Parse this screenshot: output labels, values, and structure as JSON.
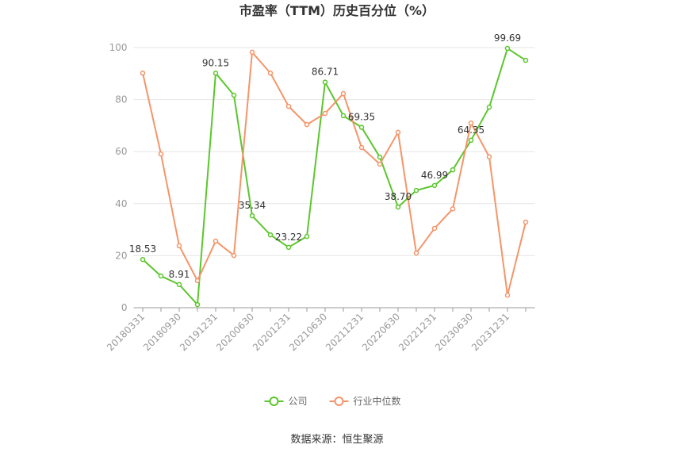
{
  "chart_data": {
    "type": "line",
    "title": "市盈率（TTM）历史百分位（%）",
    "source": "数据来源：恒生聚源",
    "categories": [
      "20180331",
      null,
      "20180930",
      null,
      "20191231",
      null,
      "20200630",
      null,
      "20201231",
      null,
      "20210630",
      null,
      "20211231",
      null,
      "20220630",
      null,
      "20221231",
      null,
      "20230630",
      null,
      "20231231",
      null
    ],
    "series": [
      {
        "name": "公司",
        "color": "#5cc62d",
        "values": [
          18.53,
          12.2,
          8.91,
          1.2,
          90.15,
          81.7,
          35.34,
          28.0,
          23.22,
          27.4,
          86.71,
          73.8,
          69.35,
          57.9,
          38.7,
          45.1,
          46.99,
          53.0,
          64.35,
          77.1,
          99.69,
          95.1
        ],
        "value_labels": [
          "18.53",
          null,
          "8.91",
          null,
          "90.15",
          null,
          "35.34",
          null,
          "23.22",
          null,
          "86.71",
          null,
          "69.35",
          null,
          "38.70",
          null,
          "46.99",
          null,
          "64.35",
          null,
          "99.69",
          null
        ]
      },
      {
        "name": "行业中位数",
        "color": "#f4956a",
        "values": [
          90.2,
          59.1,
          23.8,
          10.4,
          25.6,
          20.1,
          98.2,
          90.2,
          77.4,
          70.4,
          74.7,
          82.3,
          61.6,
          55.2,
          67.4,
          21.0,
          30.5,
          38.0,
          71.0,
          58.0,
          4.8,
          32.9
        ]
      }
    ],
    "ylim": [
      0,
      100
    ],
    "yticks": [
      0,
      20,
      40,
      60,
      80,
      100
    ],
    "grid": true,
    "legend": "bottom"
  }
}
